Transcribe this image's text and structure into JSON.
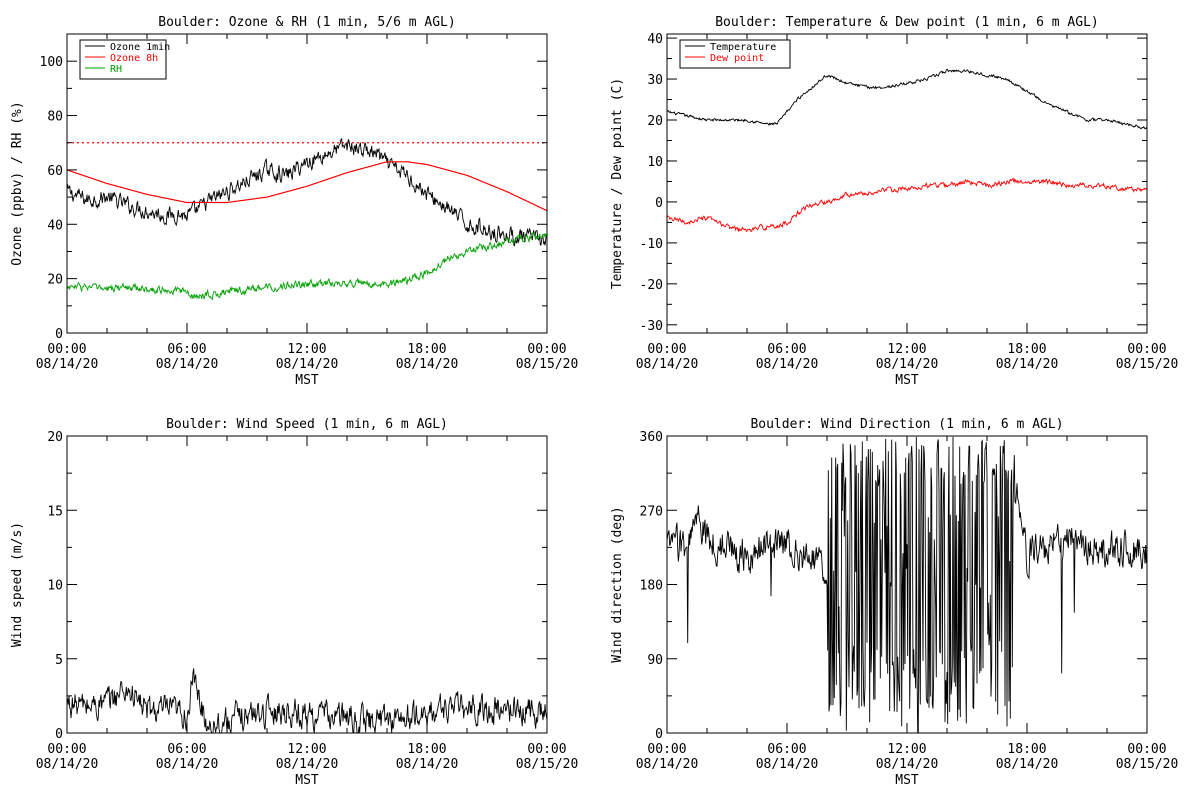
{
  "chart_data": [
    {
      "type": "line",
      "title": "Boulder: Ozone & RH (1 min, 5/6 m AGL)",
      "xlabel": "MST",
      "ylabel": "Ozone (ppbv) / RH (%)",
      "x_ticks": [
        {
          "time": "00:00",
          "date": "08/14/20"
        },
        {
          "time": "06:00",
          "date": "08/14/20"
        },
        {
          "time": "12:00",
          "date": "08/14/20"
        },
        {
          "time": "18:00",
          "date": "08/14/20"
        },
        {
          "time": "00:00",
          "date": "08/15/20"
        }
      ],
      "xlim": [
        0,
        24
      ],
      "ylim": [
        0,
        110
      ],
      "y_ticks": [
        0,
        20,
        40,
        60,
        80,
        100
      ],
      "legend": "top-left",
      "grid": false,
      "reference_line": {
        "y": 70,
        "color": "#ff0000",
        "style": "dotted"
      },
      "series": [
        {
          "name": "Ozone 1min",
          "color": "#000000",
          "noise": 2.5,
          "x": [
            0,
            1,
            2,
            3,
            4,
            5,
            5.5,
            6,
            6.5,
            7,
            8,
            9,
            10,
            11,
            12,
            13,
            14,
            15,
            15.5,
            16,
            17,
            18,
            19,
            20,
            21,
            22,
            23,
            24
          ],
          "y": [
            52,
            49,
            50,
            47,
            45,
            43,
            44,
            43,
            45,
            48,
            52,
            56,
            60,
            58,
            63,
            66,
            69,
            67,
            66,
            62,
            58,
            51,
            46,
            40,
            38,
            36,
            35,
            34
          ]
        },
        {
          "name": "Ozone 8h",
          "color": "#ff0000",
          "noise": 0,
          "x": [
            0,
            2,
            4,
            6,
            8,
            10,
            12,
            14,
            16,
            17,
            18,
            20,
            22,
            24
          ],
          "y": [
            60,
            55,
            51,
            48,
            48,
            50,
            54,
            59,
            63,
            63,
            62,
            58,
            52,
            45
          ]
        },
        {
          "name": "RH",
          "color": "#00a000",
          "noise": 1.2,
          "x": [
            0,
            1,
            2,
            3,
            4,
            5,
            6,
            6.5,
            7,
            8,
            10,
            12,
            14,
            16,
            17,
            18,
            19,
            20,
            21,
            22,
            23,
            24
          ],
          "y": [
            17,
            17,
            16,
            17,
            16,
            16,
            15,
            13,
            14,
            15,
            17,
            18,
            18,
            18,
            19,
            22,
            27,
            30,
            32,
            34,
            35,
            36
          ]
        }
      ]
    },
    {
      "type": "line",
      "title": "Boulder: Temperature & Dew point (1 min, 6 m AGL)",
      "xlabel": "MST",
      "ylabel": "Temperature / Dew point (C)",
      "x_ticks": [
        {
          "time": "00:00",
          "date": "08/14/20"
        },
        {
          "time": "06:00",
          "date": "08/14/20"
        },
        {
          "time": "12:00",
          "date": "08/14/20"
        },
        {
          "time": "18:00",
          "date": "08/14/20"
        },
        {
          "time": "00:00",
          "date": "08/15/20"
        }
      ],
      "xlim": [
        0,
        24
      ],
      "ylim": [
        -32,
        41
      ],
      "y_ticks": [
        -30,
        -20,
        -10,
        0,
        10,
        20,
        30,
        40
      ],
      "legend": "top-left",
      "grid": false,
      "series": [
        {
          "name": "Temperature",
          "color": "#000000",
          "noise": 0.3,
          "x": [
            0,
            1,
            2,
            3,
            4,
            5,
            5.5,
            6,
            6.5,
            7,
            7.5,
            8,
            9,
            10,
            11,
            12,
            13,
            14,
            15,
            16,
            17,
            18,
            19,
            20,
            21,
            22,
            23,
            24
          ],
          "y": [
            22,
            21,
            20,
            20,
            20,
            19,
            19,
            22,
            25,
            27,
            29,
            31,
            29,
            28,
            28,
            29,
            30,
            32,
            32,
            31,
            30,
            27,
            24,
            22,
            20,
            20,
            19,
            18
          ]
        },
        {
          "name": "Dew point",
          "color": "#ff0000",
          "noise": 0.5,
          "x": [
            0,
            1,
            2,
            3,
            4,
            5,
            5.5,
            6,
            6.5,
            7,
            8,
            9,
            10,
            11,
            12,
            13,
            14,
            15,
            16,
            17,
            18,
            19,
            20,
            21,
            22,
            23,
            24
          ],
          "y": [
            -4,
            -5,
            -4,
            -6,
            -7,
            -6,
            -6,
            -5,
            -3,
            -1,
            0,
            2,
            2,
            3,
            3,
            4,
            4,
            5,
            4,
            5,
            5,
            5,
            4,
            4,
            4,
            3,
            3
          ]
        }
      ]
    },
    {
      "type": "line",
      "title": "Boulder: Wind Speed (1 min, 6 m AGL)",
      "xlabel": "MST",
      "ylabel": "Wind speed (m/s)",
      "x_ticks": [
        {
          "time": "00:00",
          "date": "08/14/20"
        },
        {
          "time": "06:00",
          "date": "08/14/20"
        },
        {
          "time": "12:00",
          "date": "08/14/20"
        },
        {
          "time": "18:00",
          "date": "08/14/20"
        },
        {
          "time": "00:00",
          "date": "08/15/20"
        }
      ],
      "xlim": [
        0,
        24
      ],
      "ylim": [
        0,
        20
      ],
      "y_ticks": [
        0,
        5,
        10,
        15,
        20
      ],
      "grid": false,
      "series": [
        {
          "color": "#000000",
          "noise": 0.8,
          "x": [
            0,
            1,
            2,
            2.5,
            3,
            4,
            5,
            6,
            6.3,
            6.7,
            7,
            8,
            9,
            10,
            11,
            12,
            13,
            14,
            15,
            16,
            17,
            18,
            19,
            20,
            21,
            22,
            23,
            24
          ],
          "y": [
            2,
            1.8,
            2,
            2.6,
            3,
            1.5,
            1.5,
            1.2,
            3.5,
            2,
            0.6,
            0.8,
            1.2,
            1.5,
            1.5,
            1.2,
            1.2,
            1,
            0.8,
            1,
            1,
            1.2,
            1.8,
            1.6,
            1.5,
            1.6,
            1.5,
            1.5
          ]
        }
      ]
    },
    {
      "type": "line",
      "title": "Boulder: Wind Direction (1 min, 6 m AGL)",
      "xlabel": "MST",
      "ylabel": "Wind direction (deg)",
      "x_ticks": [
        {
          "time": "00:00",
          "date": "08/14/20"
        },
        {
          "time": "06:00",
          "date": "08/14/20"
        },
        {
          "time": "12:00",
          "date": "08/14/20"
        },
        {
          "time": "18:00",
          "date": "08/14/20"
        },
        {
          "time": "00:00",
          "date": "08/15/20"
        }
      ],
      "xlim": [
        0,
        24
      ],
      "ylim": [
        0,
        360
      ],
      "y_ticks": [
        0,
        90,
        180,
        270,
        360
      ],
      "grid": false,
      "variable_segment": {
        "x_start": 8.0,
        "x_end": 17.4
      },
      "series": [
        {
          "color": "#000000",
          "noise": 18,
          "x": [
            0,
            1,
            1.5,
            2,
            3,
            4,
            5,
            6,
            7,
            7.5,
            8,
            17.4,
            18,
            19,
            20,
            21,
            22,
            23,
            24
          ],
          "y": [
            225,
            230,
            260,
            235,
            225,
            215,
            225,
            230,
            215,
            205,
            200,
            300,
            215,
            225,
            235,
            230,
            225,
            225,
            215
          ]
        }
      ]
    }
  ]
}
